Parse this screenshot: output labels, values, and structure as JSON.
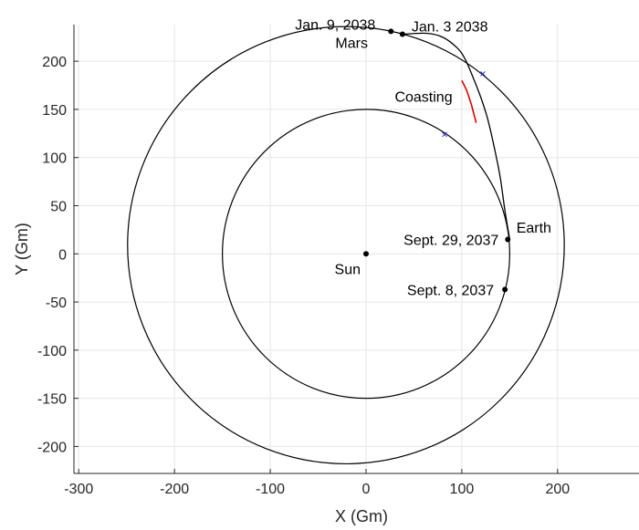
{
  "chart_data": {
    "type": "line",
    "xlabel": "X (Gm)",
    "ylabel": "Y (Gm)",
    "xlim": [
      -305,
      285
    ],
    "ylim": [
      -228,
      238
    ],
    "grid": true,
    "x_ticks": [
      -300,
      -200,
      -100,
      0,
      100,
      200
    ],
    "y_ticks": [
      200,
      150,
      100,
      50,
      0,
      -50,
      -100,
      -150,
      -200
    ],
    "orbits": [
      {
        "center": [
          0,
          0
        ],
        "a": 150,
        "b": 150,
        "label": ""
      },
      {
        "center": [
          -21,
          9
        ],
        "a": 228,
        "b": 227,
        "label": ""
      }
    ],
    "trajectory": [
      [
        150,
        15
      ],
      [
        145,
        45
      ],
      [
        140,
        80
      ],
      [
        134,
        110
      ],
      [
        127,
        140
      ],
      [
        120,
        162
      ],
      [
        111,
        185
      ],
      [
        103,
        203
      ],
      [
        95,
        214
      ],
      [
        80,
        225
      ],
      [
        63,
        229
      ],
      [
        38,
        228
      ]
    ],
    "coasting_segment": [
      [
        115,
        136
      ],
      [
        110,
        155
      ],
      [
        105,
        170
      ],
      [
        100,
        180
      ]
    ],
    "markers_x": [
      [
        82,
        124
      ],
      [
        122,
        187
      ]
    ],
    "points": [
      {
        "name": "Sun",
        "x": 0,
        "y": 0,
        "label": "Sun"
      },
      {
        "name": "earth-arrival",
        "x": 148,
        "y": 15,
        "label": "Sept. 29, 2037"
      },
      {
        "name": "earth-depart",
        "x": 145,
        "y": -37,
        "label": "Sept. 8, 2037"
      },
      {
        "name": "mars-jan9",
        "x": 26,
        "y": 231,
        "label": "Jan. 9, 2038"
      },
      {
        "name": "mars-jan3",
        "x": 38,
        "y": 228,
        "label": "Jan. 3 2038"
      }
    ],
    "annotations": [
      {
        "text": "Earth",
        "x": 157,
        "y": 22
      },
      {
        "text": "Mars",
        "x": -32,
        "y": 214
      },
      {
        "text": "Coasting",
        "x": 30,
        "y": 158
      }
    ]
  },
  "colors": {
    "orbit": "#000000",
    "coasting": "#e00000",
    "marker": "#3b3bd9",
    "grid": "#e6e6e6"
  }
}
